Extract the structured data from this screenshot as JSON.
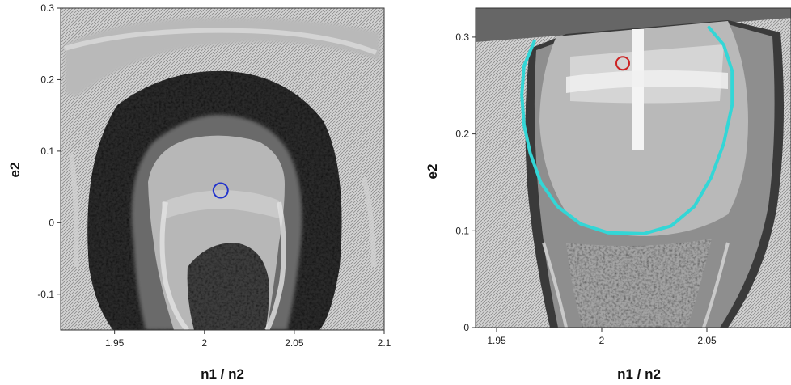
{
  "chart_data": [
    {
      "type": "heatmap",
      "title": "",
      "xlabel": "n1 / n2",
      "ylabel": "e2",
      "xlim": [
        1.92,
        2.1
      ],
      "ylim": [
        -0.15,
        0.3
      ],
      "x_ticks": [
        1.95,
        2,
        2.05,
        2.1
      ],
      "x_tick_labels": [
        "1.95",
        "2",
        "2.05",
        "2.1"
      ],
      "y_ticks": [
        -0.1,
        0,
        0.1,
        0.2,
        0.3
      ],
      "y_tick_labels": [
        "-0.1",
        "0",
        "0.1",
        "0.2",
        "0.3"
      ],
      "grid": false,
      "colormap": "grayscale",
      "marker": {
        "shape": "circle",
        "x": 2.009,
        "y": 0.045,
        "color": "#2233cc"
      }
    },
    {
      "type": "heatmap",
      "title": "",
      "xlabel": "n1 / n2",
      "ylabel": "e2",
      "xlim": [
        1.94,
        2.09
      ],
      "ylim": [
        0,
        0.33
      ],
      "x_ticks": [
        1.95,
        2,
        2.05
      ],
      "x_tick_labels": [
        "1.95",
        "2",
        "2.05"
      ],
      "y_ticks": [
        0,
        0.1,
        0.2,
        0.3
      ],
      "y_tick_labels": [
        "0",
        "0.1",
        "0.2",
        "0.3"
      ],
      "grid": false,
      "colormap": "grayscale",
      "marker": {
        "shape": "circle",
        "x": 2.01,
        "y": 0.273,
        "color": "#cc2222"
      },
      "contour": {
        "color": "#33d6d6",
        "points": [
          [
            1.968,
            0.296
          ],
          [
            1.963,
            0.27
          ],
          [
            1.962,
            0.24
          ],
          [
            1.963,
            0.21
          ],
          [
            1.966,
            0.18
          ],
          [
            1.971,
            0.15
          ],
          [
            1.979,
            0.125
          ],
          [
            1.99,
            0.107
          ],
          [
            2.003,
            0.098
          ],
          [
            2.02,
            0.097
          ],
          [
            2.033,
            0.105
          ],
          [
            2.044,
            0.125
          ],
          [
            2.052,
            0.155
          ],
          [
            2.058,
            0.19
          ],
          [
            2.062,
            0.23
          ],
          [
            2.062,
            0.265
          ],
          [
            2.058,
            0.292
          ],
          [
            2.051,
            0.31
          ]
        ]
      }
    }
  ]
}
